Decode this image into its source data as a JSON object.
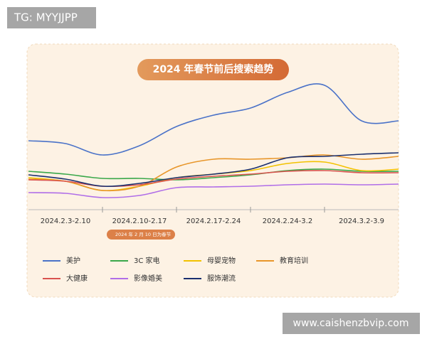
{
  "corner_tag": "TG: MYYJJPP",
  "watermark": "www.caishenzbvip.com",
  "chart_data": {
    "type": "line",
    "title": "2024 年春节前后搜索趋势",
    "annotation": "2024 年 2 月 10 日为春节",
    "categories": [
      null,
      "2024.2.3-2.10",
      null,
      "2024.2.10-2.17",
      null,
      "2024.2.17-2.24",
      null,
      "2024.2.24-3.2",
      null,
      "2024.3.2-3.9",
      null
    ],
    "ylim": [
      0,
      100
    ],
    "series": [
      {
        "name": "美护",
        "color": "#4a72c8",
        "values": [
          48.5,
          46.5,
          38.5,
          45,
          58.5,
          66.5,
          71.5,
          82.5,
          87.5,
          62.5,
          62.5
        ]
      },
      {
        "name": "3C 家电",
        "color": "#3aa84a",
        "values": [
          27,
          25,
          22,
          22,
          21,
          22.5,
          24.5,
          27.5,
          28.5,
          27,
          27
        ]
      },
      {
        "name": "母婴宠物",
        "color": "#f2c200",
        "values": [
          22.5,
          20,
          13.5,
          16.5,
          22.5,
          25,
          27.5,
          32.5,
          33.5,
          27.5,
          28.5
        ]
      },
      {
        "name": "教育培训",
        "color": "#e8962a",
        "values": [
          21.5,
          20,
          13.5,
          16.5,
          30,
          35.5,
          35.5,
          36.5,
          38.5,
          35.5,
          37.5
        ]
      },
      {
        "name": "大健康",
        "color": "#d9534f",
        "values": [
          21,
          20,
          16.5,
          17.5,
          21.5,
          23.5,
          25,
          27,
          27.5,
          26,
          26
        ]
      },
      {
        "name": "影像婚美",
        "color": "#b06ee8",
        "values": [
          12,
          11.5,
          8.5,
          10,
          15.5,
          16,
          16.5,
          17.5,
          18,
          17.5,
          18
        ]
      },
      {
        "name": "服饰潮流",
        "color": "#1a2f6e",
        "values": [
          24.5,
          21.5,
          16.5,
          18.5,
          22.5,
          25,
          28.5,
          36.5,
          37.5,
          39,
          40
        ]
      }
    ]
  }
}
